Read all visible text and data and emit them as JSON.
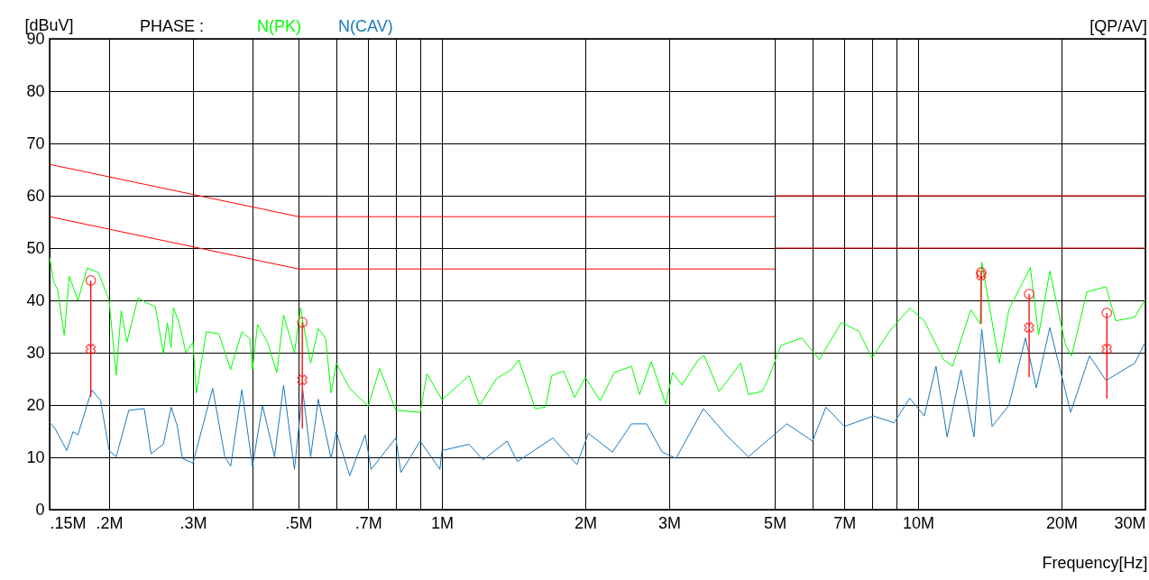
{
  "chart_data": {
    "type": "line",
    "ylabel": "[dBuV]",
    "xlabel": "Frequency[Hz]",
    "annotations": [
      "PHASE :",
      "[QP/AV]"
    ],
    "log": "x",
    "xlim": [
      0.15,
      30
    ],
    "ylim": [
      0,
      90
    ],
    "xticks": [
      {
        "value": 0.15,
        "label": ".15M"
      },
      {
        "value": 0.2,
        "label": ".2M"
      },
      {
        "value": 0.3,
        "label": ".3M"
      },
      {
        "value": 0.4,
        "label": null
      },
      {
        "value": 0.5,
        "label": ".5M"
      },
      {
        "value": 0.6,
        "label": null
      },
      {
        "value": 0.7,
        "label": ".7M"
      },
      {
        "value": 0.8,
        "label": null
      },
      {
        "value": 0.9,
        "label": null
      },
      {
        "value": 1,
        "label": "1M"
      },
      {
        "value": 2,
        "label": "2M"
      },
      {
        "value": 3,
        "label": "3M"
      },
      {
        "value": 5,
        "label": "5M"
      },
      {
        "value": 6,
        "label": null
      },
      {
        "value": 7,
        "label": "7M"
      },
      {
        "value": 8,
        "label": null
      },
      {
        "value": 9,
        "label": null
      },
      {
        "value": 10,
        "label": "10M"
      },
      {
        "value": 20,
        "label": "20M"
      },
      {
        "value": 30,
        "label": "30M"
      }
    ],
    "yticks": [
      0,
      10,
      20,
      30,
      40,
      50,
      60,
      70,
      80,
      90
    ],
    "grid": true,
    "legend": "top left",
    "line_style": "solid",
    "series": [
      {
        "name": "N(PK)",
        "color": "#00ff00",
        "x": [
          0.15,
          0.153,
          0.156,
          0.161,
          0.165,
          0.172,
          0.18,
          0.19,
          0.2,
          0.207,
          0.212,
          0.218,
          0.23,
          0.24,
          0.25,
          0.26,
          0.265,
          0.27,
          0.273,
          0.28,
          0.29,
          0.3,
          0.305,
          0.32,
          0.34,
          0.36,
          0.38,
          0.395,
          0.4,
          0.41,
          0.43,
          0.45,
          0.465,
          0.49,
          0.505,
          0.51,
          0.53,
          0.55,
          0.57,
          0.585,
          0.6,
          0.64,
          0.66,
          0.7,
          0.74,
          0.8,
          0.9,
          0.93,
          1.0,
          1.14,
          1.2,
          1.3,
          1.4,
          1.45,
          1.57,
          1.65,
          1.7,
          1.8,
          1.9,
          2.0,
          2.15,
          2.3,
          2.5,
          2.6,
          2.75,
          2.95,
          3.05,
          3.19,
          3.45,
          3.55,
          3.82,
          4.24,
          4.4,
          4.7,
          4.83,
          5.15,
          5.7,
          6.2,
          6.9,
          7.5,
          8.0,
          8.7,
          9.6,
          10.3,
          11.3,
          11.8,
          12.9,
          13.5,
          13.6,
          14.8,
          15.5,
          17.2,
          17.9,
          18.9,
          20.4,
          21.0,
          22.6,
          24.8,
          26.0,
          28.5,
          30
        ],
        "values": [
          48.2,
          43.5,
          42,
          33.3,
          44.6,
          40,
          46.2,
          45.3,
          40,
          25.7,
          38,
          32,
          40.5,
          39.5,
          38.8,
          29.9,
          35.7,
          31,
          38.6,
          36,
          30,
          32,
          22.3,
          34,
          33.6,
          26.8,
          34,
          32.7,
          26.8,
          35.4,
          32,
          26.2,
          37.2,
          30,
          38.6,
          36,
          28,
          34.6,
          32.7,
          22.3,
          28,
          23.2,
          22,
          19.8,
          27,
          19,
          18.6,
          26,
          21,
          25.6,
          19.9,
          25,
          26.8,
          28.6,
          19.3,
          19.6,
          25.6,
          26.5,
          21.4,
          25.3,
          20.8,
          26.2,
          27.4,
          22,
          28.3,
          20.2,
          26.2,
          23.8,
          28.6,
          29.5,
          22.6,
          28,
          22,
          22.6,
          24.7,
          31.4,
          32.8,
          28.7,
          35.8,
          34.1,
          29,
          34.1,
          38.5,
          36.1,
          28.7,
          27.4,
          38.2,
          35.5,
          47.3,
          28,
          38.2,
          46.3,
          33.4,
          45.6,
          31.4,
          29.4,
          41.6,
          42.6,
          36.1,
          36.8,
          40.2
        ]
      },
      {
        "name": "N(CAV)",
        "color": "#1a7abf",
        "x": [
          0.15,
          0.154,
          0.163,
          0.168,
          0.172,
          0.184,
          0.192,
          0.2,
          0.207,
          0.22,
          0.237,
          0.245,
          0.26,
          0.27,
          0.278,
          0.285,
          0.3,
          0.33,
          0.35,
          0.36,
          0.38,
          0.4,
          0.42,
          0.445,
          0.465,
          0.49,
          0.51,
          0.53,
          0.55,
          0.585,
          0.6,
          0.64,
          0.69,
          0.71,
          0.8,
          0.82,
          0.9,
          0.99,
          1.0,
          1.14,
          1.22,
          1.37,
          1.44,
          1.71,
          1.92,
          2.03,
          2.28,
          2.5,
          2.69,
          2.9,
          3.1,
          3.54,
          3.95,
          4.4,
          5.3,
          6.0,
          6.4,
          7.0,
          8.05,
          8.9,
          9.6,
          10.3,
          10.9,
          11.5,
          12.3,
          13.1,
          13.6,
          14.3,
          15.5,
          16.8,
          17.7,
          18.9,
          20.9,
          22.9,
          24.8,
          28.5,
          30
        ],
        "values": [
          16.7,
          15.5,
          11.3,
          14.9,
          14.3,
          22.9,
          20.8,
          11.3,
          10.1,
          19,
          19.3,
          10.7,
          12.5,
          19.6,
          16,
          9.8,
          8.9,
          23.2,
          10.1,
          8.3,
          22.9,
          8.3,
          19.9,
          10.1,
          23.8,
          7.7,
          22.9,
          10.1,
          21.1,
          9.8,
          14.9,
          6.5,
          14.3,
          7.7,
          13.7,
          7.1,
          13.1,
          7.7,
          11.3,
          12.5,
          9.5,
          13.1,
          9.2,
          13.7,
          8.6,
          14.6,
          11,
          16.4,
          16.4,
          11,
          9.8,
          19.3,
          14.3,
          10.1,
          16.4,
          13.1,
          19.6,
          15.9,
          17.9,
          16.6,
          21.3,
          17.9,
          27.4,
          13.9,
          26.7,
          13.9,
          34.5,
          15.9,
          19.9,
          32.8,
          23.3,
          34.8,
          18.6,
          29.4,
          24.7,
          28,
          32.1
        ]
      },
      {
        "color": "#ff0000",
        "x": [
          0.15,
          0.5,
          5
        ],
        "values": [
          66,
          56,
          56
        ]
      },
      {
        "color": "#ff0000",
        "x": [
          5,
          30
        ],
        "values": [
          60,
          60
        ]
      },
      {
        "color": "#ff0000",
        "x": [
          0.15,
          0.5,
          5
        ],
        "values": [
          56,
          46,
          46
        ]
      },
      {
        "color": "#ff0000",
        "x": [
          5,
          30
        ],
        "values": [
          50,
          50
        ]
      },
      {
        "type": "scatter",
        "marker": "circle",
        "color": "#ff0000",
        "x": [
          0.183,
          0.509,
          13.56,
          17.1,
          24.9
        ],
        "values": [
          43.8,
          35.8,
          45.3,
          41.2,
          37.6
        ],
        "errors": [
          [
            21.6,
            43.8
          ],
          [
            15.5,
            35.8
          ],
          [
            35.5,
            45.3
          ],
          [
            25.3,
            41.2
          ],
          [
            21.2,
            37.6
          ]
        ]
      },
      {
        "type": "scatter",
        "marker": "cross",
        "color": "#ff0000",
        "x": [
          0.183,
          0.509,
          13.56,
          17.1,
          24.9
        ],
        "values": [
          30.7,
          24.8,
          44.8,
          34.8,
          30.7
        ]
      }
    ]
  }
}
